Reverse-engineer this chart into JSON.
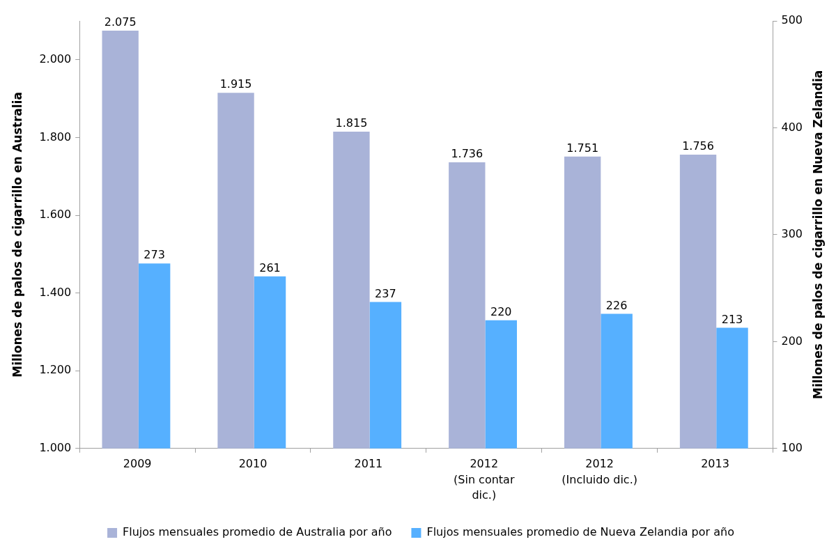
{
  "chart_data": {
    "type": "bar",
    "ylabel": "Millones de palos de cigarrillo en Australia",
    "y2label": "Millones de palos de cigarrillo en Nueva Zelandia",
    "categories": [
      "2009",
      "2010",
      "2011",
      "2012 (Sin contar dic.)",
      "2012 (Incluido dic.)",
      "2013"
    ],
    "series": [
      {
        "name": "Flujos mensuales promedio de Australia por año",
        "color": "#a9b3d8",
        "values": [
          2075,
          1915,
          1815,
          1736,
          1751,
          1756
        ],
        "value_labels": [
          "2.075",
          "1.915",
          "1.815",
          "1.736",
          "1.751",
          "1.756"
        ]
      },
      {
        "name": "Flujos mensuales promedio de Nueva Zelandia por año",
        "color": "#56b0ff",
        "axis": "y2",
        "values": [
          273,
          261,
          237,
          220,
          226,
          213
        ],
        "value_labels": [
          "273",
          "261",
          "237",
          "220",
          "226",
          "213"
        ]
      }
    ],
    "ylim": [
      1000,
      2100
    ],
    "yticks": [
      {
        "value": 1000,
        "label": "1.000"
      },
      {
        "value": 1200,
        "label": "1.200"
      },
      {
        "value": 1400,
        "label": "1.400"
      },
      {
        "value": 1600,
        "label": "1.600"
      },
      {
        "value": 1800,
        "label": "1.800"
      },
      {
        "value": 2000,
        "label": "2.000"
      }
    ],
    "y2lim": [
      100,
      500
    ],
    "y2ticks": [
      100,
      200,
      300,
      400,
      500
    ],
    "grid": false,
    "legend": "bottom"
  }
}
